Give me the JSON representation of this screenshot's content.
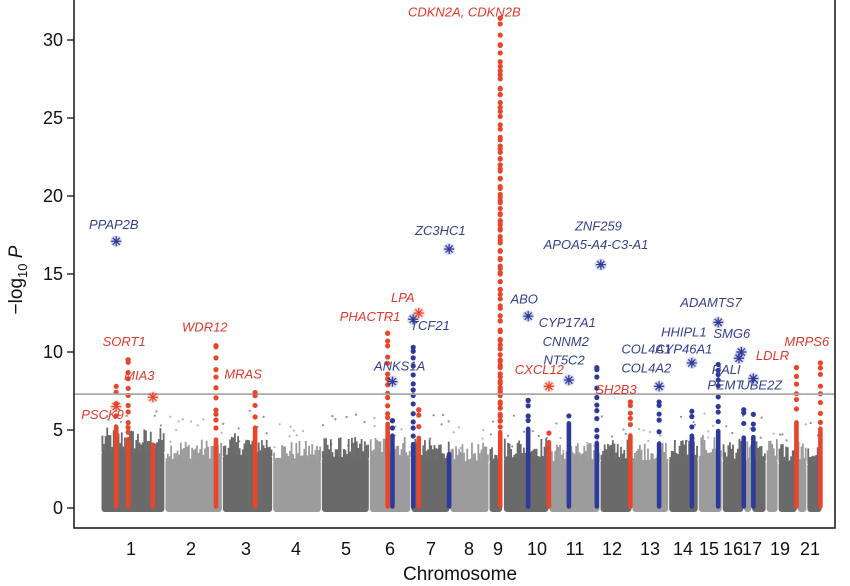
{
  "chart_data": {
    "type": "scatter",
    "subtype": "manhattan",
    "title": "",
    "xlabel": "Chromosome",
    "ylabel": "−log10 P",
    "ylabel_parts": {
      "prefix": "−log",
      "subscript": "10",
      "suffix": " P"
    },
    "ylim": [
      -1,
      32.5
    ],
    "yticks": [
      0,
      5,
      10,
      15,
      20,
      25,
      30
    ],
    "significance_threshold": 7.3,
    "grid": false,
    "colors": {
      "band_dark": "#6a6a6a",
      "band_light": "#9c9c9c",
      "known_locus": "#e8452b",
      "novel_locus": "#2e3a9a",
      "threshold_line": "#a8a8a8",
      "label_red": "#e0392b",
      "label_blue": "#34408f"
    },
    "xtick_labels": [
      "1",
      "2",
      "3",
      "4",
      "5",
      "6",
      "7",
      "8",
      "9",
      "10",
      "11",
      "12",
      "13",
      "14",
      "15",
      "16",
      "17",
      "19",
      "21"
    ],
    "chromosomes": [
      {
        "chr": "1",
        "start": 0.0,
        "end": 8.0,
        "shade": "dark",
        "peak": 4.3
      },
      {
        "chr": "2",
        "start": 8.0,
        "end": 15.2,
        "shade": "light",
        "peak": 3.7
      },
      {
        "chr": "3",
        "start": 15.2,
        "end": 21.5,
        "shade": "dark",
        "peak": 4.0
      },
      {
        "chr": "4",
        "start": 21.5,
        "end": 27.6,
        "shade": "light",
        "peak": 3.6
      },
      {
        "chr": "5",
        "start": 27.6,
        "end": 33.6,
        "shade": "dark",
        "peak": 3.8
      },
      {
        "chr": "6",
        "start": 33.6,
        "end": 38.8,
        "shade": "light",
        "peak": 3.9
      },
      {
        "chr": "7",
        "start": 38.8,
        "end": 43.7,
        "shade": "dark",
        "peak": 3.7
      },
      {
        "chr": "8",
        "start": 43.7,
        "end": 48.6,
        "shade": "light",
        "peak": 3.5
      },
      {
        "chr": "9",
        "start": 48.6,
        "end": 50.3,
        "shade": "dark",
        "peak": 3.6
      },
      {
        "chr": "10",
        "start": 50.4,
        "end": 56.1,
        "shade": "dark",
        "peak": 3.8
      },
      {
        "chr": "11",
        "start": 56.1,
        "end": 62.5,
        "shade": "light",
        "peak": 3.5
      },
      {
        "chr": "12",
        "start": 62.5,
        "end": 66.5,
        "shade": "dark",
        "peak": 3.7
      },
      {
        "chr": "13",
        "start": 66.5,
        "end": 71.1,
        "shade": "light",
        "peak": 3.6
      },
      {
        "chr": "14",
        "start": 71.1,
        "end": 74.8,
        "shade": "dark",
        "peak": 3.8
      },
      {
        "chr": "15",
        "start": 74.8,
        "end": 77.8,
        "shade": "light",
        "peak": 3.9
      },
      {
        "chr": "16",
        "start": 77.8,
        "end": 80.5,
        "shade": "dark",
        "peak": 3.7
      },
      {
        "chr": "17",
        "start": 80.5,
        "end": 81.5,
        "shade": "light",
        "peak": 3.6
      },
      {
        "chr": "18",
        "start": 81.5,
        "end": 83.3,
        "shade": "dark",
        "peak": 3.6
      },
      {
        "chr": "19",
        "start": 83.3,
        "end": 84.8,
        "shade": "light",
        "peak": 3.7
      },
      {
        "chr": "20",
        "start": 84.8,
        "end": 87.2,
        "shade": "dark",
        "peak": 3.5
      },
      {
        "chr": "21",
        "start": 87.2,
        "end": 88.4,
        "shade": "light",
        "peak": 3.6
      },
      {
        "chr": "22",
        "start": 88.4,
        "end": 90.3,
        "shade": "dark",
        "peak": 3.4
      }
    ],
    "xticks": [
      {
        "label": "1",
        "pos": 3.9
      },
      {
        "label": "2",
        "pos": 10.3
      },
      {
        "label": "3",
        "pos": 15.9
      },
      {
        "label": "4",
        "pos": 20.8
      },
      {
        "label": "5",
        "pos": 25.6
      },
      {
        "label": "6",
        "pos": 30.1
      },
      {
        "label": "7",
        "pos": 34.3
      },
      {
        "label": "8",
        "pos": 38.7
      },
      {
        "label": "9",
        "pos": 41.7
      },
      {
        "label": "10",
        "pos": 45.4
      },
      {
        "label": "11",
        "pos": 49.9
      },
      {
        "label": "12",
        "pos": 55.0
      },
      {
        "label": "13",
        "pos": 59.1
      },
      {
        "label": "14",
        "pos": 62.8
      },
      {
        "label": "15",
        "pos": 66.0
      },
      {
        "label": "16",
        "pos": 68.6
      },
      {
        "label": "17",
        "pos": 71.0
      },
      {
        "label": "19",
        "pos": 76.1
      },
      {
        "label": "21",
        "pos": 80.6
      }
    ],
    "locus_columns": [
      {
        "gene": "PSCK9",
        "group": "known",
        "pos": 1.9,
        "top": 7.8
      },
      {
        "gene": "SORT1",
        "group": "known",
        "pos": 3.4,
        "top": 9.5
      },
      {
        "gene": "MIA3",
        "group": "known",
        "pos": 6.5,
        "top": 4.2
      },
      {
        "gene": "WDR12",
        "group": "known",
        "pos": 14.4,
        "top": 10.4
      },
      {
        "gene": "MRAS",
        "group": "known",
        "pos": 19.3,
        "top": 7.4
      },
      {
        "gene": "PHACTR1",
        "group": "known",
        "pos": 35.9,
        "top": 11.2
      },
      {
        "gene": "ANKS1A",
        "group": "novel",
        "pos": 36.5,
        "top": 5.6
      },
      {
        "gene": "TCF21",
        "group": "novel",
        "pos": 39.1,
        "top": 10.3
      },
      {
        "gene": "LPA",
        "group": "known",
        "pos": 39.8,
        "top": 6.3
      },
      {
        "gene": "ZC3HC1",
        "group": "novel",
        "pos": 43.6,
        "top": 3.6
      },
      {
        "gene": "CDKN2A, CDKN2B",
        "group": "known",
        "pos": 50.0,
        "top": 31.4
      },
      {
        "gene": "ABO",
        "group": "novel",
        "pos": 53.5,
        "top": 6.9
      },
      {
        "gene": "CXCL12",
        "group": "known",
        "pos": 56.1,
        "top": 4.8
      },
      {
        "gene": "CYP17A1, CNNM2, NT5C2",
        "group": "novel",
        "pos": 58.6,
        "top": 5.9
      },
      {
        "gene": "ZNF259, APOA5-A4-C3-A1",
        "group": "novel",
        "pos": 62.1,
        "top": 9.0
      },
      {
        "gene": "SH2B3",
        "group": "known",
        "pos": 66.3,
        "top": 6.8
      },
      {
        "gene": "COL4A1, COL4A2",
        "group": "novel",
        "pos": 69.9,
        "top": 6.8
      },
      {
        "gene": "HHIPL1, CYP46A1",
        "group": "novel",
        "pos": 74.0,
        "top": 6.2
      },
      {
        "gene": "ADAMTS7",
        "group": "novel",
        "pos": 77.3,
        "top": 9.2
      },
      {
        "gene": "SMG6, RALI, PEMT",
        "group": "novel",
        "pos": 80.5,
        "top": 6.3
      },
      {
        "gene": "UBE2Z",
        "group": "novel",
        "pos": 81.7,
        "top": 6.0
      },
      {
        "gene": "LDLR",
        "group": "known",
        "pos": 87.1,
        "top": 9.0
      },
      {
        "gene": "MRPS6",
        "group": "known",
        "pos": 90.1,
        "top": 9.3
      }
    ],
    "lead_snps": [
      {
        "gene": "PPAP2B",
        "group": "novel",
        "pos": 1.9,
        "value": 17.1,
        "marker": "star"
      },
      {
        "gene": "PSCK9",
        "group": "known",
        "pos": 1.9,
        "value": 6.5,
        "marker": "star"
      },
      {
        "gene": "SORT1",
        "group": "known",
        "pos": 3.4,
        "value": 9.5,
        "marker": "dot"
      },
      {
        "gene": "MIA3",
        "group": "known",
        "pos": 6.5,
        "value": 7.1,
        "marker": "star"
      },
      {
        "gene": "WDR12",
        "group": "known",
        "pos": 14.4,
        "value": 10.4,
        "marker": "dot"
      },
      {
        "gene": "MRAS",
        "group": "known",
        "pos": 19.3,
        "value": 7.4,
        "marker": "dot"
      },
      {
        "gene": "PHACTR1",
        "group": "known",
        "pos": 35.9,
        "value": 11.2,
        "marker": "dot"
      },
      {
        "gene": "ANKS1A",
        "group": "novel",
        "pos": 36.5,
        "value": 8.1,
        "marker": "star"
      },
      {
        "gene": "TCF21",
        "group": "novel",
        "pos": 39.1,
        "value": 12.1,
        "marker": "star"
      },
      {
        "gene": "LPA",
        "group": "known",
        "pos": 39.8,
        "value": 12.5,
        "marker": "star"
      },
      {
        "gene": "ZC3HC1",
        "group": "novel",
        "pos": 43.6,
        "value": 16.6,
        "marker": "star"
      },
      {
        "gene": "CDKN2A, CDKN2B",
        "group": "known",
        "pos": 50.0,
        "value": 31.4,
        "marker": "dot"
      },
      {
        "gene": "ABO",
        "group": "novel",
        "pos": 53.5,
        "value": 12.3,
        "marker": "star"
      },
      {
        "gene": "CXCL12",
        "group": "known",
        "pos": 56.1,
        "value": 7.8,
        "marker": "star"
      },
      {
        "gene": "CYP17A1, CNNM2, NT5C2",
        "group": "novel",
        "pos": 58.6,
        "value": 8.2,
        "marker": "star"
      },
      {
        "gene": "ZNF259, APOA5-A4-C3-A1",
        "group": "novel",
        "pos": 62.6,
        "value": 15.6,
        "marker": "star"
      },
      {
        "gene": "SH2B3",
        "group": "known",
        "pos": 66.3,
        "value": 6.8,
        "marker": "dot"
      },
      {
        "gene": "COL4A1, COL4A2",
        "group": "novel",
        "pos": 69.9,
        "value": 7.8,
        "marker": "star"
      },
      {
        "gene": "HHIPL1, CYP46A1",
        "group": "novel",
        "pos": 74.0,
        "value": 9.3,
        "marker": "star"
      },
      {
        "gene": "ADAMTS7",
        "group": "novel",
        "pos": 77.3,
        "value": 11.9,
        "marker": "star"
      },
      {
        "gene": "SMG6",
        "group": "novel",
        "pos": 80.2,
        "value": 10.0,
        "marker": "star"
      },
      {
        "gene": "RALI, PEMT",
        "group": "novel",
        "pos": 79.9,
        "value": 9.6,
        "marker": "star"
      },
      {
        "gene": "UBE2Z",
        "group": "novel",
        "pos": 81.7,
        "value": 8.3,
        "marker": "star"
      },
      {
        "gene": "LDLR",
        "group": "known",
        "pos": 87.1,
        "value": 9.0,
        "marker": "dot"
      },
      {
        "gene": "MRPS6",
        "group": "known",
        "pos": 90.1,
        "value": 9.3,
        "marker": "dot"
      }
    ],
    "annotations": [
      {
        "text": "PPAP2B",
        "group": "novel",
        "x": 1.6,
        "y": 17.9,
        "anchor": "middle"
      },
      {
        "text": "SORT1",
        "group": "known",
        "x": 2.9,
        "y": 10.4,
        "anchor": "middle"
      },
      {
        "text": "MIA3",
        "group": "known",
        "x": 4.8,
        "y": 8.2,
        "anchor": "middle"
      },
      {
        "text": "PSCK9",
        "group": "known",
        "x": 0.2,
        "y": 5.7,
        "anchor": "middle"
      },
      {
        "text": "WDR12",
        "group": "known",
        "x": 13.0,
        "y": 11.3,
        "anchor": "middle"
      },
      {
        "text": "MRAS",
        "group": "known",
        "x": 17.8,
        "y": 8.3,
        "anchor": "middle"
      },
      {
        "text": "PHACTR1",
        "group": "known",
        "x": 33.7,
        "y": 12.0,
        "anchor": "middle"
      },
      {
        "text": "LPA",
        "group": "known",
        "x": 37.8,
        "y": 13.2,
        "anchor": "middle"
      },
      {
        "text": "TCF21",
        "group": "novel",
        "x": 41.2,
        "y": 11.4,
        "anchor": "middle"
      },
      {
        "text": "ANKS1A",
        "group": "novel",
        "x": 37.4,
        "y": 8.8,
        "anchor": "middle"
      },
      {
        "text": "ZC3HC1",
        "group": "novel",
        "x": 42.5,
        "y": 17.5,
        "anchor": "middle"
      },
      {
        "text": "CDKN2A, CDKN2B",
        "group": "known",
        "x": 45.5,
        "y": 31.5,
        "anchor": "middle"
      },
      {
        "text": "ABO",
        "group": "novel",
        "x": 53.0,
        "y": 13.1,
        "anchor": "middle"
      },
      {
        "text": "CYP17A1",
        "group": "novel",
        "x": 58.4,
        "y": 11.6,
        "anchor": "middle"
      },
      {
        "text": "CNNM2",
        "group": "novel",
        "x": 58.2,
        "y": 10.4,
        "anchor": "middle"
      },
      {
        "text": "NT5C2",
        "group": "novel",
        "x": 58.0,
        "y": 9.2,
        "anchor": "middle"
      },
      {
        "text": "CXCL12",
        "group": "known",
        "x": 54.9,
        "y": 8.6,
        "anchor": "middle"
      },
      {
        "text": "ZNF259",
        "group": "novel",
        "x": 62.3,
        "y": 17.8,
        "anchor": "middle"
      },
      {
        "text": "APOA5-A4-C3-A1",
        "group": "novel",
        "x": 62.0,
        "y": 16.6,
        "anchor": "middle"
      },
      {
        "text": "SH2B3",
        "group": "known",
        "x": 64.5,
        "y": 7.3,
        "anchor": "middle"
      },
      {
        "text": "COL4A1",
        "group": "novel",
        "x": 68.3,
        "y": 9.9,
        "anchor": "middle"
      },
      {
        "text": "COL4A2",
        "group": "novel",
        "x": 68.3,
        "y": 8.7,
        "anchor": "middle"
      },
      {
        "text": "ADAMTS7",
        "group": "novel",
        "x": 76.4,
        "y": 12.9,
        "anchor": "middle"
      },
      {
        "text": "HHIPL1",
        "group": "novel",
        "x": 73.0,
        "y": 11.0,
        "anchor": "middle"
      },
      {
        "text": "CYP46A1",
        "group": "novel",
        "x": 73.0,
        "y": 9.9,
        "anchor": "middle"
      },
      {
        "text": "SMG6",
        "group": "novel",
        "x": 79.0,
        "y": 10.9,
        "anchor": "middle"
      },
      {
        "text": "RALI",
        "group": "novel",
        "x": 78.3,
        "y": 8.6,
        "anchor": "middle"
      },
      {
        "text": "PEMT",
        "group": "novel",
        "x": 78.2,
        "y": 7.6,
        "anchor": "middle"
      },
      {
        "text": "UBE2Z",
        "group": "novel",
        "x": 82.7,
        "y": 7.6,
        "anchor": "middle"
      },
      {
        "text": "LDLR",
        "group": "known",
        "x": 84.1,
        "y": 9.5,
        "anchor": "middle"
      },
      {
        "text": "MRPS6",
        "group": "known",
        "x": 88.4,
        "y": 10.4,
        "anchor": "middle"
      }
    ]
  }
}
